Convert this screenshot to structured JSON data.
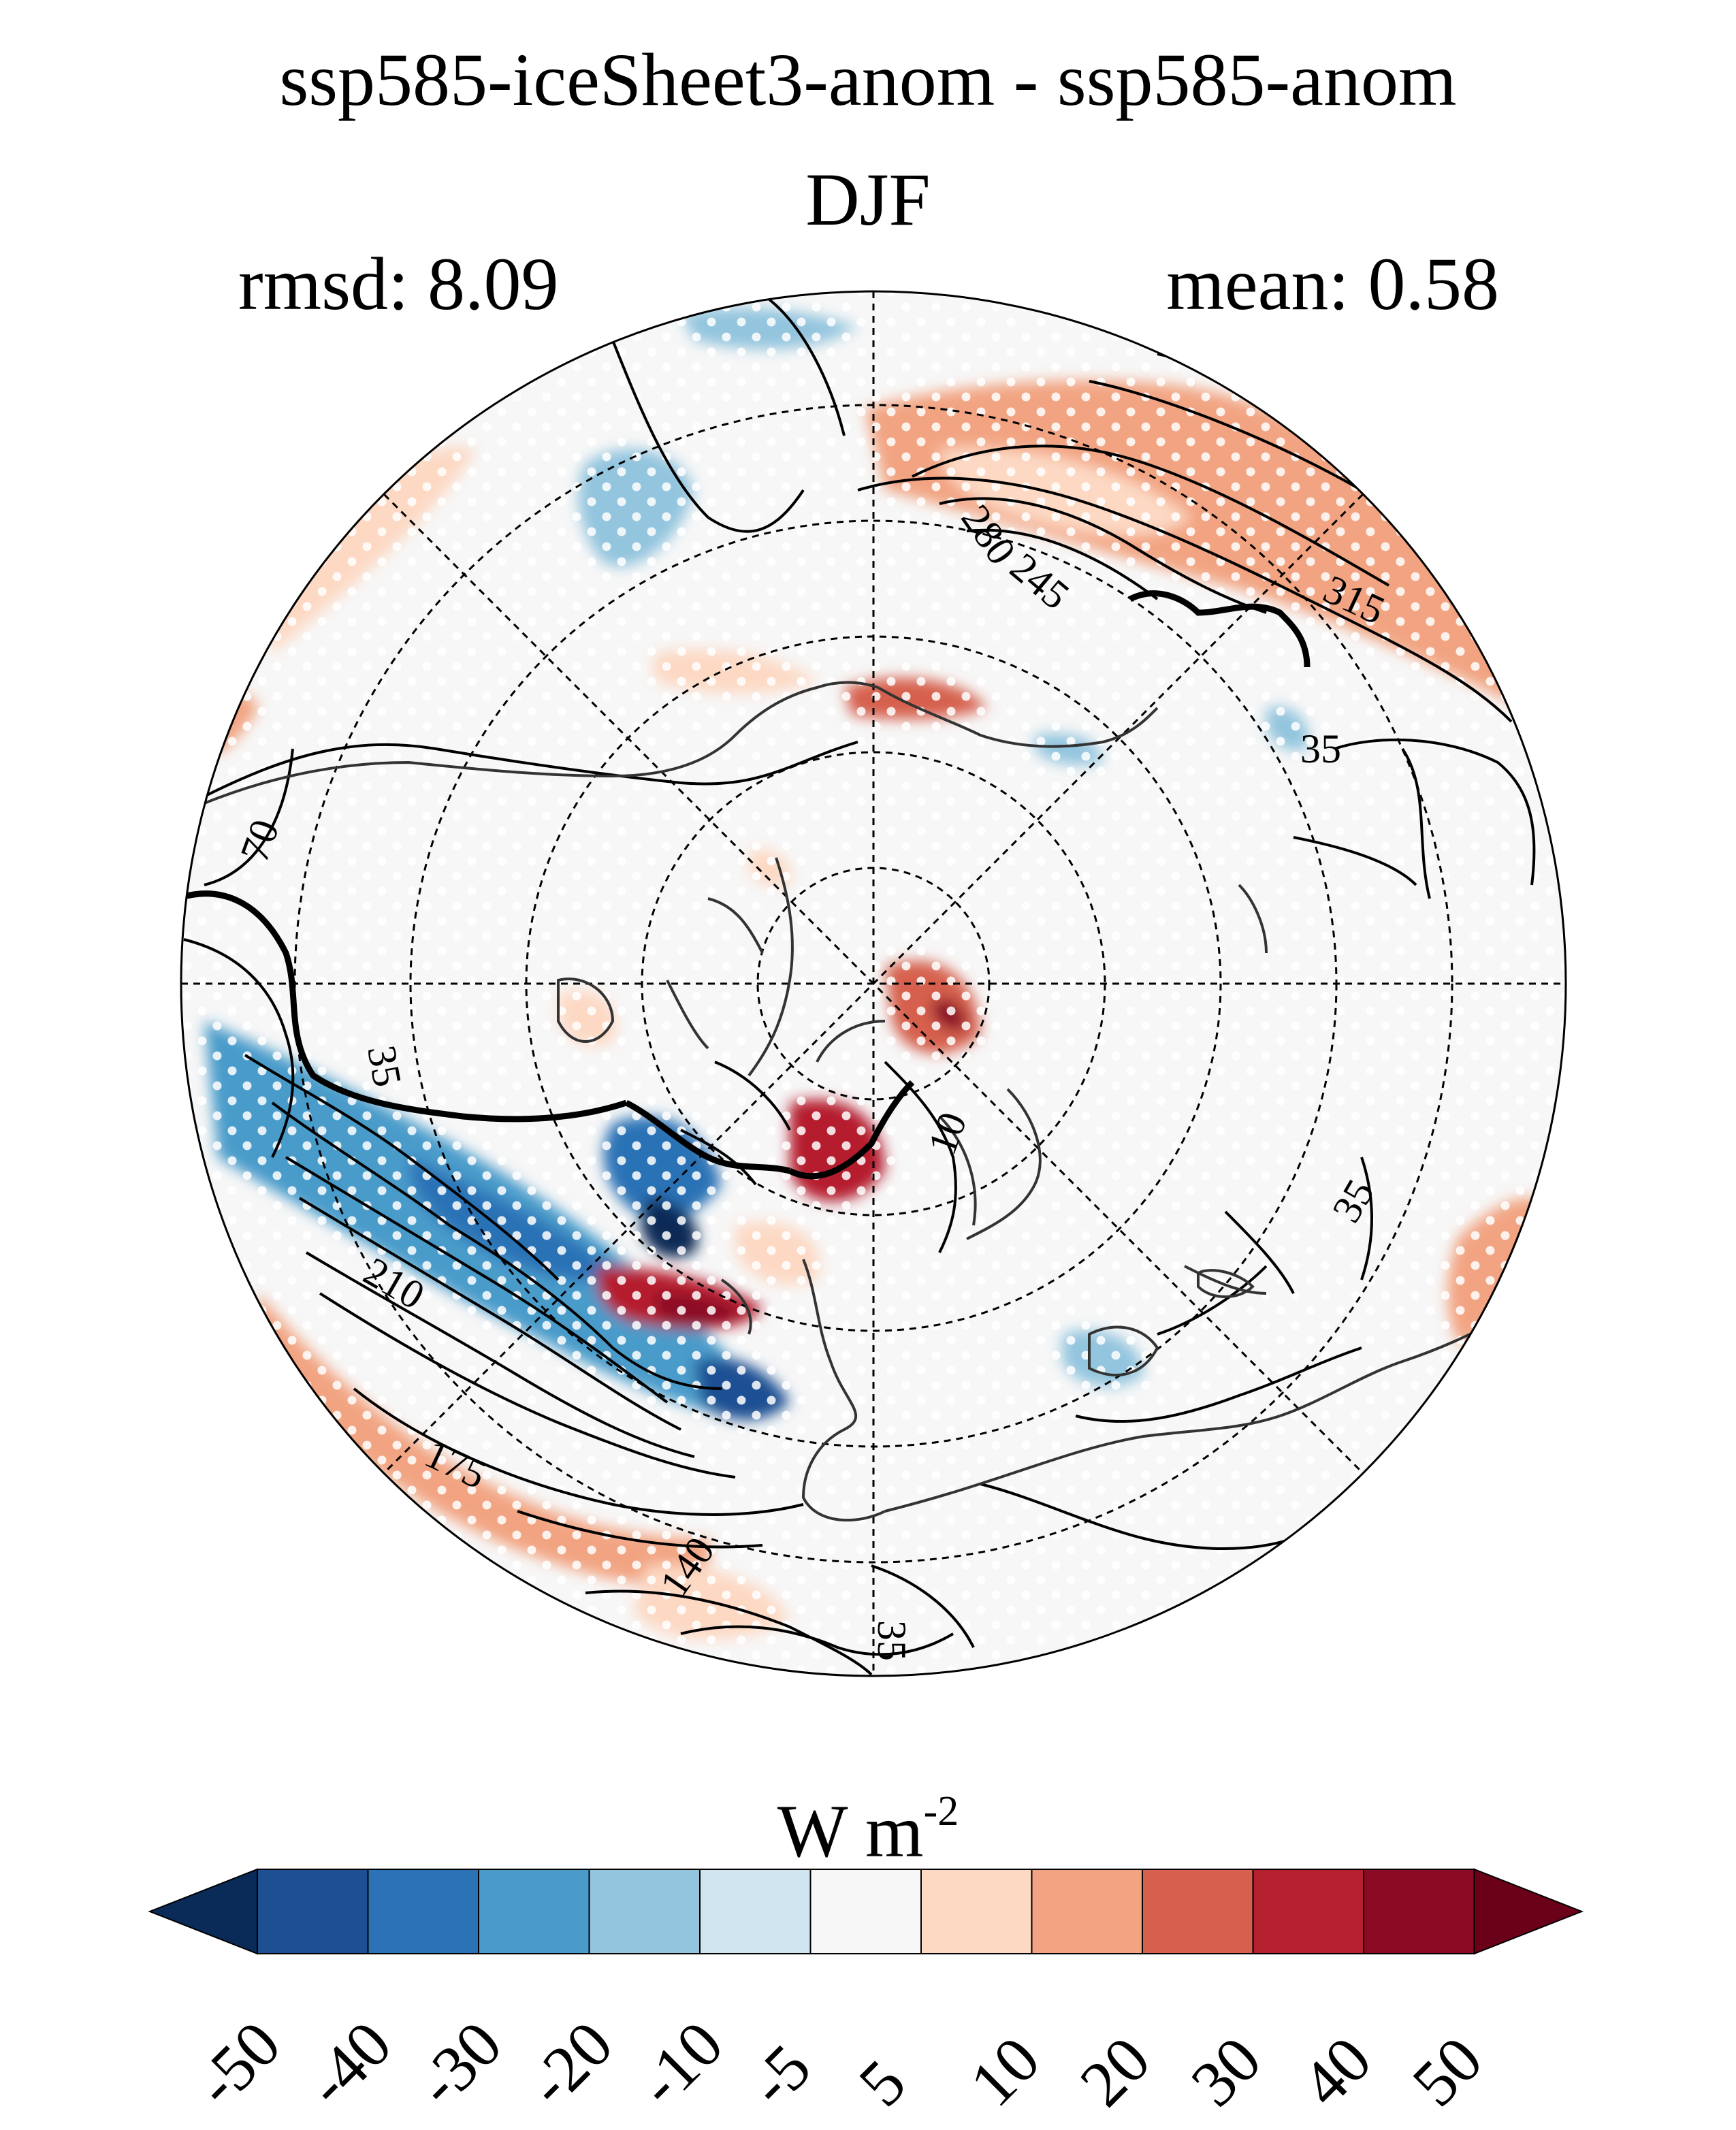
{
  "title": {
    "line1": "ssp585-iceSheet3-anom - ssp585-anom",
    "line2": "DJF"
  },
  "stats": {
    "rmsd": "rmsd: 8.09",
    "mean": "mean: 0.58"
  },
  "projection": "north-polar-stereographic",
  "contour_labels": [
    "280",
    "245",
    "315",
    "35",
    "70",
    "35",
    "210",
    "175",
    "140",
    "35",
    "35",
    "10"
  ],
  "colorbar": {
    "units_base": "W m",
    "units_exp": "-2",
    "levels": [
      "-50",
      "-40",
      "-30",
      "-20",
      "-10",
      "-5",
      "5",
      "10",
      "20",
      "30",
      "40",
      "50"
    ],
    "colors": [
      "#0a2a57",
      "#1f4f93",
      "#2c72b6",
      "#4a9bca",
      "#93c5de",
      "#d1e5f0",
      "#f7f7f7",
      "#fdd9c4",
      "#f2a482",
      "#d6604d",
      "#b51f2e",
      "#8b0b25",
      "#6b0119"
    ],
    "extend": "both"
  }
}
